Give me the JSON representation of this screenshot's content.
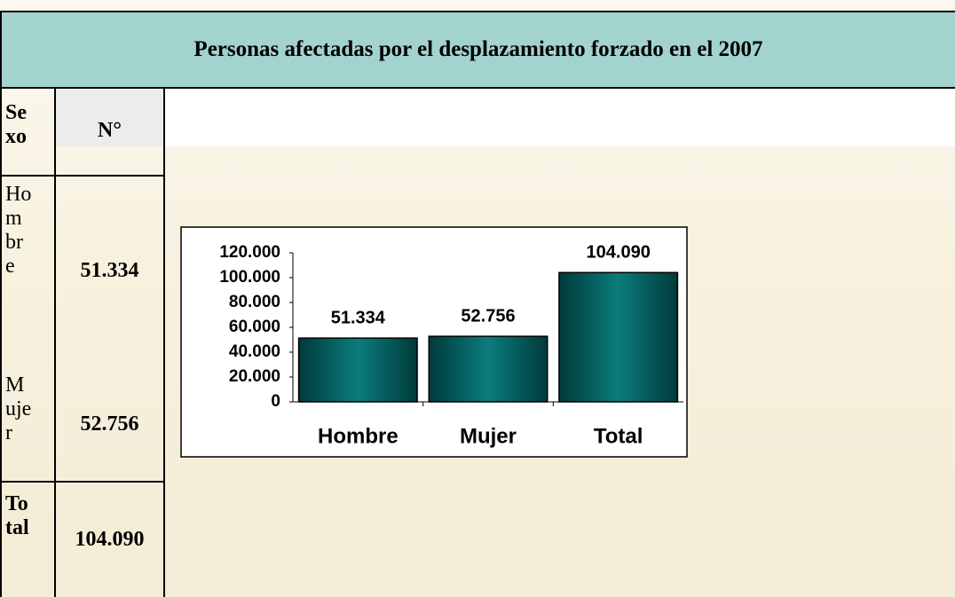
{
  "title": "Personas afectadas por el desplazamiento forzado en el 2007",
  "table": {
    "header": [
      "Sexo",
      "N°"
    ],
    "rows": [
      [
        "Hombre",
        "51.334"
      ],
      [
        "Mujer",
        "52.756"
      ],
      [
        "Total",
        "104.090"
      ]
    ]
  },
  "chart_data": {
    "type": "bar",
    "categories": [
      "Hombre",
      "Mujer",
      "Total"
    ],
    "values": [
      51334,
      52756,
      104090
    ],
    "value_labels": [
      "51.334",
      "52.756",
      "104.090"
    ],
    "color": "#006363",
    "ylim": [
      0,
      120000
    ],
    "yticks": [
      0,
      {
        "value": 20000,
        "label": "20.000"
      },
      {
        "value": 40000,
        "label": "40.000"
      },
      {
        "value": 60000,
        "label": "60.000"
      },
      {
        "value": 80000,
        "label": "80.000"
      },
      {
        "value": 100000,
        "label": "100.000"
      },
      {
        "value": 120000,
        "label": "120.000"
      }
    ]
  }
}
